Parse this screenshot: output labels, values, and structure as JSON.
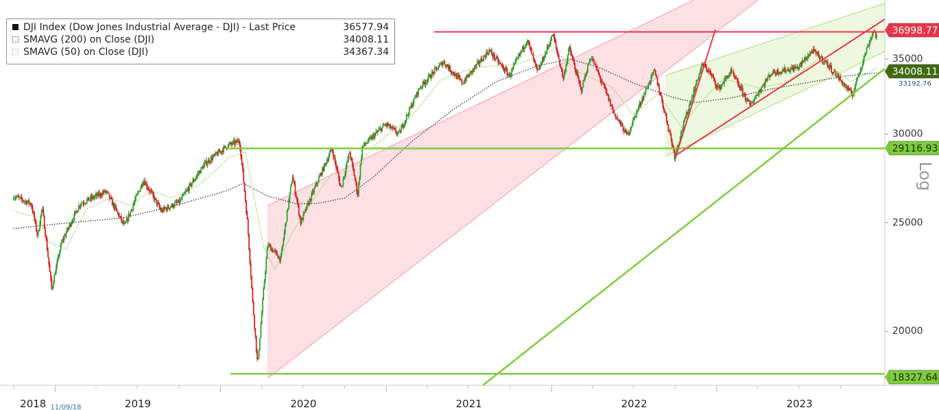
{
  "chart_data": {
    "type": "candlestick",
    "scale": "log",
    "axis_title": "Log",
    "x_axis": {
      "years": [
        "2018",
        "2019",
        "2020",
        "2021",
        "2022",
        "2023"
      ],
      "date_marker": "11/09/18"
    },
    "y_axis": {
      "ticks": [
        20000,
        25000,
        30000,
        35000
      ],
      "tick_labels": [
        "20000",
        "25000",
        "30000",
        "35000"
      ],
      "ylim": [
        17900,
        39500
      ]
    },
    "legend": {
      "placement": "top-left",
      "entries": [
        {
          "label": "DJI Index (Dow Jones Industrial Average - DJI) - Last Price",
          "value": "36577.94",
          "color": "#000000"
        },
        {
          "label": "SMAVG (200)  on Close (DJI)",
          "value": "34008.11",
          "color": "#3a3a3a"
        },
        {
          "label": "SMAVG (50)  on Close (DJI)",
          "value": "34367.34",
          "color": "#7fcc3c"
        }
      ]
    },
    "price_tags": [
      {
        "value": "36998.77",
        "color": "#e8354a"
      },
      {
        "value": "34008.11",
        "color": "#3f6a12"
      },
      {
        "value": "33192.76",
        "color": "none"
      },
      {
        "value": "29116.93",
        "color": "#7fcc3c"
      },
      {
        "value": "18327.64",
        "color": "#7fcc3c"
      }
    ],
    "horizontal_levels": [
      {
        "value": 36998.77,
        "color": "#e8354a"
      },
      {
        "value": 29116.93,
        "color": "#7fcc3c"
      },
      {
        "value": 18327.64,
        "color": "#7fcc3c"
      }
    ],
    "price_path": [
      [
        "2018-10-01",
        26400
      ],
      [
        "2018-11-09",
        25990
      ],
      [
        "2018-11-23",
        24300
      ],
      [
        "2018-12-03",
        25800
      ],
      [
        "2018-12-24",
        21800
      ],
      [
        "2019-01-15",
        24000
      ],
      [
        "2019-02-25",
        26000
      ],
      [
        "2019-04-23",
        26650
      ],
      [
        "2019-06-03",
        24800
      ],
      [
        "2019-07-15",
        27300
      ],
      [
        "2019-08-23",
        25600
      ],
      [
        "2019-10-03",
        26100
      ],
      [
        "2019-11-27",
        28200
      ],
      [
        "2020-01-17",
        29300
      ],
      [
        "2020-02-12",
        29550
      ],
      [
        "2020-02-28",
        25400
      ],
      [
        "2020-03-12",
        21200
      ],
      [
        "2020-03-23",
        18600
      ],
      [
        "2020-04-14",
        23900
      ],
      [
        "2020-05-13",
        23200
      ],
      [
        "2020-06-08",
        27500
      ],
      [
        "2020-06-26",
        25000
      ],
      [
        "2020-08-14",
        27900
      ],
      [
        "2020-09-03",
        29100
      ],
      [
        "2020-09-23",
        26800
      ],
      [
        "2020-10-12",
        28900
      ],
      [
        "2020-10-30",
        26500
      ],
      [
        "2020-11-09",
        29200
      ],
      [
        "2020-12-31",
        30600
      ],
      [
        "2021-01-29",
        29980
      ],
      [
        "2021-03-16",
        33000
      ],
      [
        "2021-05-07",
        34800
      ],
      [
        "2021-06-18",
        33300
      ],
      [
        "2021-08-16",
        35600
      ],
      [
        "2021-09-30",
        33800
      ],
      [
        "2021-11-08",
        36400
      ],
      [
        "2021-12-01",
        34000
      ],
      [
        "2022-01-04",
        36800
      ],
      [
        "2022-01-27",
        33600
      ],
      [
        "2022-02-09",
        35800
      ],
      [
        "2022-03-07",
        32800
      ],
      [
        "2022-03-29",
        35200
      ],
      [
        "2022-05-19",
        31300
      ],
      [
        "2022-06-17",
        29900
      ],
      [
        "2022-08-16",
        34150
      ],
      [
        "2022-09-30",
        28700
      ],
      [
        "2022-11-30",
        34600
      ],
      [
        "2022-12-13",
        34200
      ],
      [
        "2023-01-05",
        32900
      ],
      [
        "2023-02-01",
        34100
      ],
      [
        "2023-03-15",
        31800
      ],
      [
        "2023-05-01",
        34000
      ],
      [
        "2023-06-30",
        34400
      ],
      [
        "2023-07-31",
        35600
      ],
      [
        "2023-08-31",
        34700
      ],
      [
        "2023-10-27",
        32500
      ],
      [
        "2023-11-30",
        35900
      ],
      [
        "2023-12-13",
        37100
      ],
      [
        "2023-12-20",
        36577.94
      ]
    ],
    "sma200_path": [
      [
        "2018-10-01",
        24700
      ],
      [
        "2019-02-01",
        25000
      ],
      [
        "2019-06-01",
        25250
      ],
      [
        "2019-10-01",
        25950
      ],
      [
        "2020-01-15",
        26700
      ],
      [
        "2020-02-20",
        27100
      ],
      [
        "2020-04-15",
        26400
      ],
      [
        "2020-06-15",
        26000
      ],
      [
        "2020-08-01",
        26000
      ],
      [
        "2020-10-01",
        26300
      ],
      [
        "2020-12-01",
        27400
      ],
      [
        "2021-03-01",
        29600
      ],
      [
        "2021-06-01",
        31600
      ],
      [
        "2021-09-01",
        33400
      ],
      [
        "2021-12-01",
        34500
      ],
      [
        "2022-02-10",
        35000
      ],
      [
        "2022-04-15",
        34400
      ],
      [
        "2022-07-01",
        33300
      ],
      [
        "2022-09-30",
        32300
      ],
      [
        "2022-11-15",
        32000
      ],
      [
        "2023-02-01",
        32300
      ],
      [
        "2023-05-01",
        32900
      ],
      [
        "2023-08-01",
        33400
      ],
      [
        "2023-10-15",
        33800
      ],
      [
        "2023-12-20",
        34008.11
      ]
    ],
    "sma50_path": [
      [
        "2018-10-01",
        25600
      ],
      [
        "2018-11-20",
        25300
      ],
      [
        "2018-12-20",
        24000
      ],
      [
        "2019-01-25",
        23700
      ],
      [
        "2019-03-10",
        25700
      ],
      [
        "2019-05-01",
        26300
      ],
      [
        "2019-06-15",
        25900
      ],
      [
        "2019-08-01",
        26700
      ],
      [
        "2019-09-15",
        26300
      ],
      [
        "2019-11-15",
        27000
      ],
      [
        "2020-01-20",
        28600
      ],
      [
        "2020-02-25",
        28900
      ],
      [
        "2020-04-05",
        23800
      ],
      [
        "2020-04-30",
        22700
      ],
      [
        "2020-06-05",
        24400
      ],
      [
        "2020-07-15",
        25900
      ],
      [
        "2020-09-01",
        27600
      ],
      [
        "2020-10-15",
        27800
      ],
      [
        "2020-12-15",
        29500
      ],
      [
        "2021-03-01",
        31200
      ],
      [
        "2021-05-01",
        33500
      ],
      [
        "2021-07-15",
        34400
      ],
      [
        "2021-10-15",
        34600
      ],
      [
        "2022-01-05",
        35600
      ],
      [
        "2022-03-01",
        34100
      ],
      [
        "2022-05-15",
        33000
      ],
      [
        "2022-07-01",
        31200
      ],
      [
        "2022-08-25",
        32600
      ],
      [
        "2022-10-15",
        30400
      ],
      [
        "2022-11-20",
        31800
      ],
      [
        "2023-01-15",
        33600
      ],
      [
        "2023-04-01",
        33000
      ],
      [
        "2023-06-01",
        33300
      ],
      [
        "2023-08-15",
        35000
      ],
      [
        "2023-10-25",
        33400
      ],
      [
        "2023-12-20",
        34367.34
      ]
    ]
  }
}
